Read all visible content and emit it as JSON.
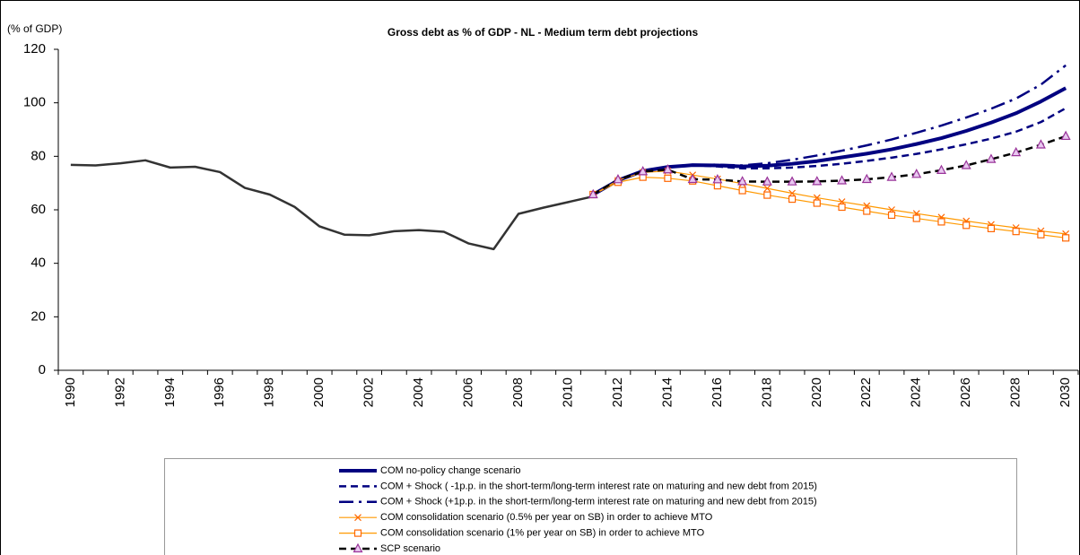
{
  "chart_data": {
    "type": "line",
    "title": "Gross debt as % of GDP - NL - Medium term debt projections",
    "y_label": "(% of GDP)",
    "categories": [
      "1990",
      null,
      "1992",
      null,
      "1994",
      null,
      "1996",
      null,
      "1998",
      null,
      "2000",
      null,
      "2002",
      null,
      "2004",
      null,
      "2006",
      null,
      "2008",
      null,
      "2010",
      null,
      "2012",
      null,
      "2014",
      null,
      "2016",
      null,
      "2018",
      null,
      "2020",
      null,
      "2022",
      null,
      "2024",
      null,
      "2026",
      null,
      "2028",
      null,
      "2030"
    ],
    "ylim": [
      0,
      120
    ],
    "yticks": [
      0,
      20,
      40,
      60,
      80,
      100,
      120
    ],
    "grid": false,
    "series": [
      {
        "color": "#333333",
        "width": 2.5,
        "dash": "solid",
        "marker": "none",
        "values": [
          76.8,
          76.6,
          77.4,
          78.5,
          75.8,
          76.1,
          74.1,
          68.2,
          65.7,
          61.1,
          53.8,
          50.7,
          50.5,
          52.0,
          52.4,
          51.8,
          47.4,
          45.3,
          58.5,
          60.8,
          62.9,
          65.0,
          null,
          null,
          null,
          null,
          null,
          null,
          null,
          null,
          null,
          null,
          null,
          null,
          null,
          null,
          null,
          null,
          null,
          null,
          null
        ]
      },
      {
        "name": "COM no-policy change scenario",
        "color": "#000080",
        "width": 4,
        "dash": "solid",
        "marker": "none",
        "values": [
          null,
          null,
          null,
          null,
          null,
          null,
          null,
          null,
          null,
          null,
          null,
          null,
          null,
          null,
          null,
          null,
          null,
          null,
          null,
          null,
          null,
          65.7,
          71.0,
          74.5,
          76.0,
          76.7,
          76.6,
          76.2,
          76.5,
          77.2,
          78.2,
          79.6,
          81.0,
          82.6,
          84.6,
          86.8,
          89.5,
          92.6,
          96.1,
          100.5,
          105.5
        ]
      },
      {
        "name": "COM + Shock ( -1p.p. in the short-term/long-term interest rate on maturing and new debt from 2015)",
        "color": "#000080",
        "width": 2.5,
        "dash": "dashed",
        "marker": "none",
        "values": [
          null,
          null,
          null,
          null,
          null,
          null,
          null,
          null,
          null,
          null,
          null,
          null,
          null,
          null,
          null,
          null,
          null,
          null,
          null,
          null,
          null,
          null,
          null,
          null,
          null,
          76.7,
          76.2,
          75.5,
          75.5,
          75.8,
          76.4,
          77.2,
          78.3,
          79.5,
          80.9,
          82.6,
          84.5,
          86.6,
          89.2,
          92.8,
          98.0
        ]
      },
      {
        "name": "COM + Shock (+1p.p. in the short-term/long-term interest rate on maturing and new debt from 2015)",
        "color": "#000080",
        "width": 2.5,
        "dash": "dashdot",
        "marker": "none",
        "values": [
          null,
          null,
          null,
          null,
          null,
          null,
          null,
          null,
          null,
          null,
          null,
          null,
          null,
          null,
          null,
          null,
          null,
          null,
          null,
          null,
          null,
          null,
          null,
          null,
          null,
          76.7,
          76.9,
          76.6,
          77.4,
          78.7,
          80.3,
          82.1,
          84.1,
          86.3,
          88.8,
          91.5,
          94.5,
          97.8,
          101.6,
          106.8,
          114.0
        ]
      },
      {
        "name": "COM consolidation scenario (0.5% per year on SB) in order to achieve MTO",
        "color": "#ff9900",
        "width": 1.2,
        "dash": "solid",
        "marker": "x",
        "marker_color": "#ff6600",
        "values": [
          null,
          null,
          null,
          null,
          null,
          null,
          null,
          null,
          null,
          null,
          null,
          null,
          null,
          null,
          null,
          null,
          null,
          null,
          null,
          null,
          null,
          65.7,
          71.0,
          74.0,
          74.5,
          73.0,
          71.5,
          69.8,
          68.0,
          66.2,
          64.5,
          63.0,
          61.5,
          60.0,
          58.6,
          57.2,
          55.8,
          54.5,
          53.3,
          52.1,
          51.0
        ]
      },
      {
        "name": "COM consolidation scenario (1% per year on SB) in order to achieve MTO",
        "color": "#ff9900",
        "width": 1.2,
        "dash": "solid",
        "marker": "square",
        "marker_color": "#ff6600",
        "values": [
          null,
          null,
          null,
          null,
          null,
          null,
          null,
          null,
          null,
          null,
          null,
          null,
          null,
          null,
          null,
          null,
          null,
          null,
          null,
          null,
          null,
          65.7,
          70.3,
          72.2,
          71.8,
          70.8,
          69.0,
          67.2,
          65.5,
          64.0,
          62.5,
          61.0,
          59.5,
          58.0,
          56.8,
          55.5,
          54.2,
          53.0,
          51.9,
          50.7,
          49.5
        ]
      },
      {
        "name": "SCP scenario",
        "color": "#000000",
        "width": 2.5,
        "dash": "dashed",
        "marker": "triangle",
        "marker_color": "#993399",
        "values": [
          null,
          null,
          null,
          null,
          null,
          null,
          null,
          null,
          null,
          null,
          null,
          null,
          null,
          null,
          null,
          null,
          null,
          null,
          null,
          null,
          null,
          65.7,
          71.3,
          74.3,
          75.0,
          71.4,
          71.3,
          70.6,
          70.5,
          70.5,
          70.6,
          70.9,
          71.4,
          72.2,
          73.3,
          74.8,
          76.6,
          78.9,
          81.4,
          84.3,
          87.5
        ]
      }
    ]
  }
}
